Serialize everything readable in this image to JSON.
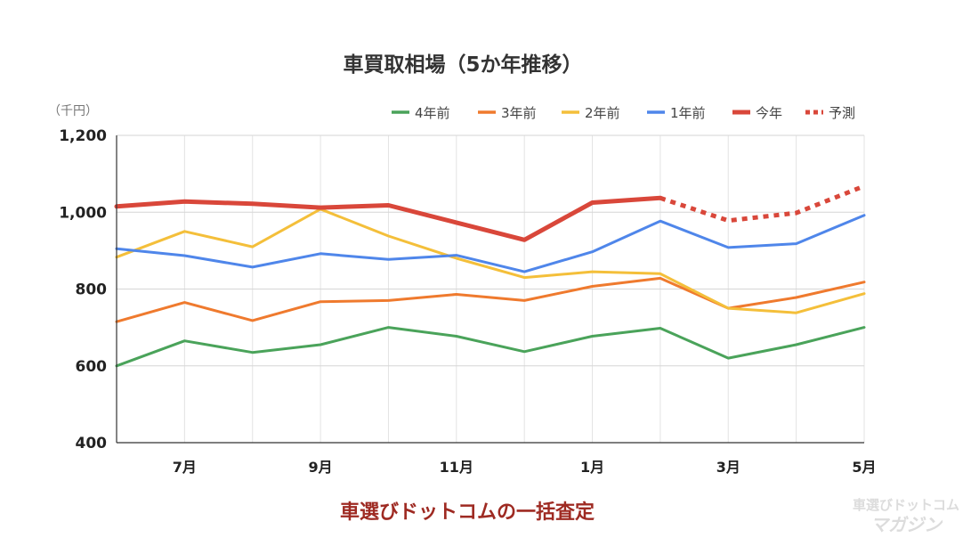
{
  "chart_data": {
    "type": "line",
    "title": "車買取相場（5か年推移）",
    "y_unit_label": "（千円）",
    "ylim": [
      400,
      1200
    ],
    "y_ticks": [
      400,
      600,
      800,
      1000,
      1200
    ],
    "y_tick_labels": [
      "400",
      "600",
      "800",
      "1,000",
      "1,200"
    ],
    "x_tick_labels": [
      "7月",
      "9月",
      "11月",
      "1月",
      "3月",
      "5月"
    ],
    "x_tick_positions": [
      1,
      3,
      5,
      7,
      9,
      11
    ],
    "x_points": 12,
    "grid": true,
    "legend_position": "top-right",
    "series": [
      {
        "name": "4年前",
        "color": "#4aa35a",
        "values": [
          600,
          665,
          635,
          655,
          700,
          677,
          637,
          677,
          698,
          620,
          655,
          700
        ]
      },
      {
        "name": "3年前",
        "color": "#ef7a2e",
        "values": [
          715,
          765,
          718,
          767,
          770,
          786,
          770,
          807,
          828,
          750,
          778,
          818
        ]
      },
      {
        "name": "2年前",
        "color": "#f4bf3a",
        "values": [
          883,
          950,
          910,
          1008,
          938,
          880,
          830,
          845,
          840,
          750,
          738,
          788
        ]
      },
      {
        "name": "1年前",
        "color": "#4f86ea",
        "values": [
          905,
          887,
          857,
          892,
          877,
          888,
          845,
          897,
          977,
          908,
          918,
          992
        ]
      },
      {
        "name": "今年",
        "color": "#d9473a",
        "values": [
          1015,
          1028,
          1022,
          1012,
          1018,
          973,
          928,
          1025,
          1037,
          null,
          null,
          null
        ]
      },
      {
        "name": "予測",
        "color": "#d9473a",
        "dashed": true,
        "values": [
          null,
          null,
          null,
          null,
          null,
          null,
          null,
          null,
          1037,
          978,
          998,
          1068
        ]
      }
    ]
  },
  "footer": {
    "caption": "車選びドットコムの一括査定",
    "watermark_line1": "車選びドットコム",
    "watermark_line2": "マガジン"
  }
}
